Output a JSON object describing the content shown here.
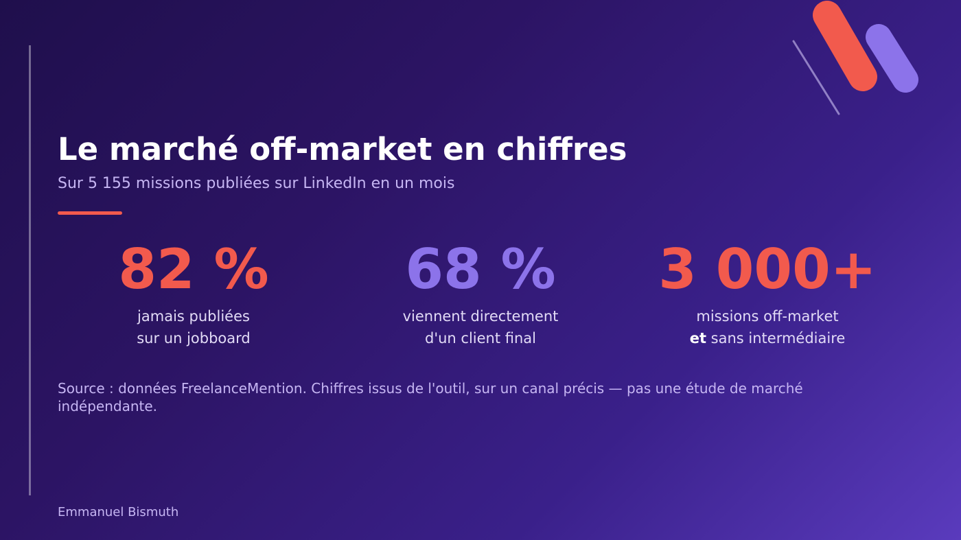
{
  "title": "Le marché off-market en chiffres",
  "subtitle": "Sur 5 155 missions publiées sur LinkedIn en un mois",
  "stats": [
    {
      "value": "82 %",
      "line1": "jamais publiées",
      "line2": "sur un jobboard",
      "line2_bold": "",
      "color": "#f25a4d"
    },
    {
      "value": "68 %",
      "line1": "viennent directement",
      "line2": "d'un client final",
      "line2_bold": "",
      "color": "#8c73ea"
    },
    {
      "value": "3 000+",
      "line1": "missions off-market",
      "line2_bold": "et",
      "line2": " sans intermédiaire",
      "color": "#f25a4d"
    }
  ],
  "source": "Source : données FreelanceMention. Chiffres issus de l'outil, sur un canal précis — pas une étude de marché indépendante.",
  "author": "Emmanuel Bismuth",
  "colors": {
    "accent_coral": "#f25a4d",
    "accent_violet": "#8c73ea",
    "background_dark": "#1f0f4c",
    "background_light": "#5a3bbd"
  }
}
